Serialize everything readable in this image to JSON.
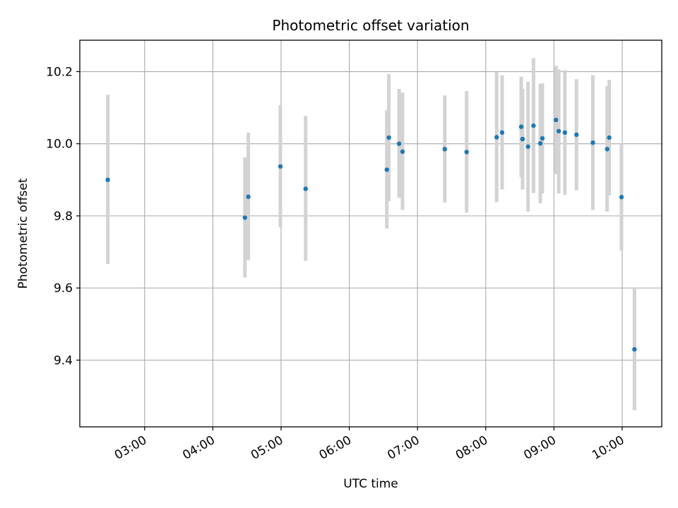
{
  "chart_data": {
    "type": "scatter",
    "title": "Photometric offset variation",
    "xlabel": "UTC time",
    "ylabel": "Photometric offset",
    "grid": true,
    "xlim_hours": [
      2.05,
      10.58
    ],
    "ylim": [
      9.215,
      10.287
    ],
    "x_ticks": [
      {
        "hour": 3,
        "label": "03:00"
      },
      {
        "hour": 4,
        "label": "04:00"
      },
      {
        "hour": 5,
        "label": "05:00"
      },
      {
        "hour": 6,
        "label": "06:00"
      },
      {
        "hour": 7,
        "label": "07:00"
      },
      {
        "hour": 8,
        "label": "08:00"
      },
      {
        "hour": 9,
        "label": "09:00"
      },
      {
        "hour": 10,
        "label": "10:00"
      }
    ],
    "y_ticks": [
      {
        "value": 9.4,
        "label": "9.4"
      },
      {
        "value": 9.6,
        "label": "9.6"
      },
      {
        "value": 9.8,
        "label": "9.8"
      },
      {
        "value": 10.0,
        "label": "10.0"
      },
      {
        "value": 10.2,
        "label": "10.2"
      }
    ],
    "colors": {
      "point": "#1f77b4",
      "errorbar": "#d3d3d3",
      "grid": "#b0b0b0",
      "axis": "#000000"
    },
    "series": [
      {
        "name": "offset",
        "points": [
          {
            "t": 2.46,
            "y": 9.9,
            "lo": 9.667,
            "hi": 10.136
          },
          {
            "t": 4.47,
            "y": 9.795,
            "lo": 9.629,
            "hi": 9.962
          },
          {
            "t": 4.52,
            "y": 9.853,
            "lo": 9.677,
            "hi": 10.031
          },
          {
            "t": 4.99,
            "y": 9.937,
            "lo": 9.768,
            "hi": 10.107
          },
          {
            "t": 5.36,
            "y": 9.875,
            "lo": 9.675,
            "hi": 10.077
          },
          {
            "t": 6.55,
            "y": 9.928,
            "lo": 9.765,
            "hi": 10.093
          },
          {
            "t": 6.58,
            "y": 10.017,
            "lo": 9.841,
            "hi": 10.193
          },
          {
            "t": 6.73,
            "y": 10.0,
            "lo": 9.85,
            "hi": 10.152
          },
          {
            "t": 6.78,
            "y": 9.978,
            "lo": 9.816,
            "hi": 10.142
          },
          {
            "t": 7.4,
            "y": 9.985,
            "lo": 9.837,
            "hi": 10.134
          },
          {
            "t": 7.72,
            "y": 9.977,
            "lo": 9.809,
            "hi": 10.146
          },
          {
            "t": 8.16,
            "y": 10.018,
            "lo": 9.838,
            "hi": 10.199
          },
          {
            "t": 8.24,
            "y": 10.031,
            "lo": 9.873,
            "hi": 10.19
          },
          {
            "t": 8.52,
            "y": 10.047,
            "lo": 9.908,
            "hi": 10.186
          },
          {
            "t": 8.54,
            "y": 10.013,
            "lo": 9.873,
            "hi": 10.152
          },
          {
            "t": 8.62,
            "y": 9.992,
            "lo": 9.812,
            "hi": 10.172
          },
          {
            "t": 8.7,
            "y": 10.05,
            "lo": 9.863,
            "hi": 10.237
          },
          {
            "t": 8.8,
            "y": 10.001,
            "lo": 9.835,
            "hi": 10.166
          },
          {
            "t": 8.83,
            "y": 10.015,
            "lo": 9.862,
            "hi": 10.168
          },
          {
            "t": 9.03,
            "y": 10.066,
            "lo": 9.916,
            "hi": 10.216
          },
          {
            "t": 9.07,
            "y": 10.035,
            "lo": 9.862,
            "hi": 10.206
          },
          {
            "t": 9.16,
            "y": 10.031,
            "lo": 9.858,
            "hi": 10.204
          },
          {
            "t": 9.33,
            "y": 10.025,
            "lo": 9.871,
            "hi": 10.179
          },
          {
            "t": 9.57,
            "y": 10.003,
            "lo": 9.816,
            "hi": 10.19
          },
          {
            "t": 9.78,
            "y": 9.985,
            "lo": 9.812,
            "hi": 10.16
          },
          {
            "t": 9.81,
            "y": 10.017,
            "lo": 9.857,
            "hi": 10.177
          },
          {
            "t": 9.99,
            "y": 9.852,
            "lo": 9.704,
            "hi": 10.001
          },
          {
            "t": 10.18,
            "y": 9.43,
            "lo": 9.261,
            "hi": 9.598
          }
        ]
      }
    ]
  }
}
